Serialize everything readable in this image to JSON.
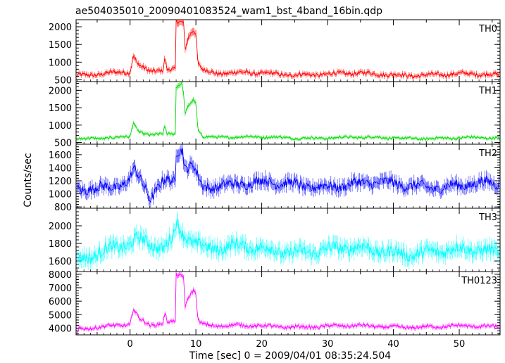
{
  "title": "ae504035010_20090401083524_wam1_bst_4band_16bin.qdp",
  "chart_data": {
    "type": "line",
    "xlabel": "Time [sec] 0 = 2009/04/01 08:35:24.504",
    "ylabel": "Counts/sec",
    "xlim": [
      -8.2,
      56.2
    ],
    "x_ticks": [
      0,
      10,
      20,
      30,
      40,
      50
    ],
    "x_tick_labels": [
      "0",
      "10",
      "20",
      "30",
      "40",
      "50"
    ],
    "bin_seconds": 0.125,
    "panels": [
      {
        "name": "TH0",
        "color": "#ff0000",
        "ylim": [
          450,
          2200
        ],
        "y_ticks": [
          500,
          1000,
          1500,
          2000
        ],
        "y_tick_labels": [
          "500",
          "1000",
          "1500",
          "2000"
        ],
        "baseline": 650,
        "noise": 70,
        "features": [
          {
            "x": [
              -8,
              0,
              0.5,
              0.8,
              1.5,
              3.0,
              5.0,
              5.3,
              5.6,
              6.9,
              7.0,
              8.2,
              8.3,
              8.6,
              9.0,
              9.6,
              10.0,
              10.3,
              11.0,
              13.0,
              56
            ],
            "y": [
              650,
              700,
              1150,
              1050,
              850,
              720,
              800,
              1150,
              800,
              800,
              2150,
              2150,
              1300,
              1600,
              1800,
              1950,
              1850,
              1000,
              800,
              680,
              640
            ]
          }
        ]
      },
      {
        "name": "TH1",
        "color": "#00dd00",
        "ylim": [
          450,
          2250
        ],
        "y_ticks": [
          500,
          1000,
          1500,
          2000
        ],
        "y_tick_labels": [
          "500",
          "1000",
          "1500",
          "2000"
        ],
        "baseline": 640,
        "noise": 45,
        "features": [
          {
            "x": [
              -8,
              0,
              0.5,
              0.8,
              1.5,
              3.0,
              5.0,
              5.3,
              5.6,
              6.9,
              7.0,
              7.9,
              8.2,
              8.3,
              8.6,
              9.0,
              9.6,
              10.0,
              10.3,
              11.0,
              13.0,
              56
            ],
            "y": [
              620,
              650,
              1080,
              950,
              780,
              680,
              750,
              1000,
              760,
              760,
              2100,
              2200,
              1800,
              1300,
              1450,
              1600,
              1750,
              1650,
              900,
              700,
              650,
              620
            ]
          }
        ]
      },
      {
        "name": "TH2",
        "color": "#0000ff",
        "ylim": [
          780,
          1760
        ],
        "y_ticks": [
          800,
          1000,
          1200,
          1400,
          1600
        ],
        "y_tick_labels": [
          "800",
          "1000",
          "1200",
          "1400",
          "1600"
        ],
        "baseline": 1130,
        "noise": 95,
        "features": [
          {
            "x": [
              -8,
              -1,
              0,
              0.5,
              1.2,
              2.5,
              3.0,
              5.0,
              6.9,
              7.0,
              8.0,
              8.3,
              9.0,
              9.6,
              10.2,
              11.0,
              56
            ],
            "y": [
              1100,
              1150,
              1200,
              1350,
              1250,
              1050,
              900,
              1150,
              1180,
              1650,
              1700,
              1400,
              1430,
              1450,
              1300,
              1150,
              1130
            ]
          }
        ]
      },
      {
        "name": "TH3",
        "color": "#00ffff",
        "ylim": [
          1480,
          2200
        ],
        "y_ticks": [
          1600,
          1800,
          2000
        ],
        "y_tick_labels": [
          "1600",
          "1800",
          "2000"
        ],
        "baseline": 1700,
        "noise": 85,
        "features": [
          {
            "x": [
              -8,
              0,
              1.0,
              5.0,
              6.5,
              7.0,
              8.0,
              10.0,
              12.0,
              56
            ],
            "y": [
              1650,
              1760,
              1820,
              1760,
              1880,
              2050,
              1950,
              1820,
              1740,
              1700
            ]
          }
        ]
      },
      {
        "name": "TH0123",
        "color": "#ff00ff",
        "ylim": [
          3500,
          8200
        ],
        "y_ticks": [
          4000,
          5000,
          6000,
          7000,
          8000
        ],
        "y_tick_labels": [
          "4000",
          "5000",
          "6000",
          "7000",
          "8000"
        ],
        "baseline": 4100,
        "noise": 150,
        "features": [
          {
            "x": [
              -8,
              -7.8,
              0,
              0.5,
              0.8,
              1.5,
              3.0,
              5.0,
              5.3,
              5.6,
              6.9,
              7.0,
              8.2,
              8.3,
              8.6,
              9.0,
              9.6,
              10.0,
              10.3,
              11.0,
              13.0,
              56
            ],
            "y": [
              3600,
              4000,
              4200,
              5400,
              5100,
              4600,
              4200,
              4400,
              5200,
              4500,
              4500,
              8000,
              7900,
              5600,
              6000,
              6500,
              6900,
              6600,
              4600,
              4300,
              4150,
              4100
            ]
          }
        ]
      }
    ]
  }
}
